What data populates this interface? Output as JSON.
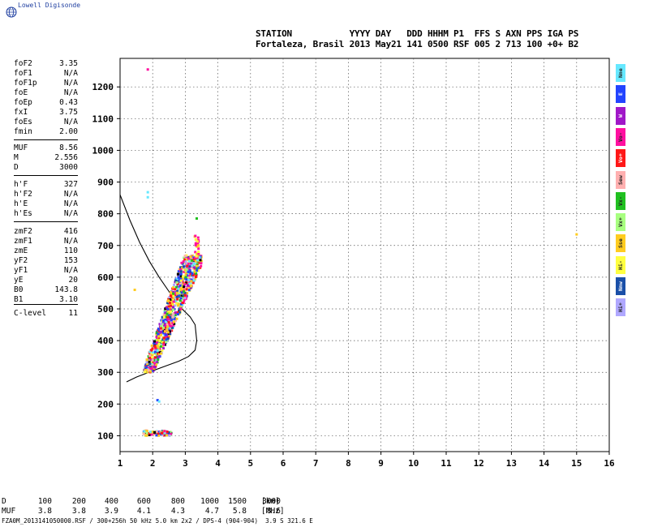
{
  "app": {
    "title": "Lowell Digisonde"
  },
  "header": {
    "labels": "STATION           YYYY DAY   DDD HHHM P1  FFS S AXN PPS IGA PS",
    "values": "Fortaleza, Brasil 2013 May21 141 0500 RSF 005 2 713 100 +0+ B2"
  },
  "params": [
    {
      "name": "foF2",
      "value": "3.35"
    },
    {
      "name": "foF1",
      "value": "N/A"
    },
    {
      "name": "foF1p",
      "value": "N/A"
    },
    {
      "name": "foE",
      "value": "N/A"
    },
    {
      "name": "foEp",
      "value": "0.43"
    },
    {
      "name": "fxI",
      "value": "3.75"
    },
    {
      "name": "foEs",
      "value": "N/A"
    },
    {
      "name": "fmin",
      "value": "2.00"
    },
    {
      "name": "MUF",
      "value": "8.56"
    },
    {
      "name": "M",
      "value": "2.556"
    },
    {
      "name": "D",
      "value": "3000"
    },
    {
      "name": "h'F",
      "value": "327"
    },
    {
      "name": "h'F2",
      "value": "N/A"
    },
    {
      "name": "h'E",
      "value": "N/A"
    },
    {
      "name": "h'Es",
      "value": "N/A"
    },
    {
      "name": "zmF2",
      "value": "416"
    },
    {
      "name": "zmF1",
      "value": "N/A"
    },
    {
      "name": "zmE",
      "value": "110"
    },
    {
      "name": "yF2",
      "value": "153"
    },
    {
      "name": "yF1",
      "value": "N/A"
    },
    {
      "name": "yE",
      "value": "20"
    },
    {
      "name": "B0",
      "value": "143.8"
    },
    {
      "name": "B1",
      "value": "3.10"
    },
    {
      "name": "C-level",
      "value": "11"
    }
  ],
  "legend": [
    {
      "label": "Nne",
      "color": "#66e8ff"
    },
    {
      "label": "E",
      "color": "#2244ff"
    },
    {
      "label": "W",
      "color": "#a018c8"
    },
    {
      "label": "Vo-",
      "color": "#ff10a0"
    },
    {
      "label": "Vo+",
      "color": "#ff1818"
    },
    {
      "label": "Sew",
      "color": "#ffb0b0"
    },
    {
      "label": "Vx-",
      "color": "#20c020"
    },
    {
      "label": "Vx+",
      "color": "#a8ff80"
    },
    {
      "label": "Sse",
      "color": "#ffcc20"
    },
    {
      "label": "Hi-",
      "color": "#ffff40"
    },
    {
      "label": "Nnw",
      "color": "#1a4fa8"
    },
    {
      "label": "Hi+",
      "color": "#b0a8ff"
    }
  ],
  "bottom_table": {
    "rows": [
      {
        "label": "D",
        "values": [
          "100",
          "200",
          "400",
          "600",
          "800",
          "1000",
          "1500",
          "3000"
        ],
        "unit": "[km]"
      },
      {
        "label": "MUF",
        "values": [
          "3.8",
          "3.8",
          "3.9",
          "4.1",
          "4.3",
          "4.7",
          "5.8",
          "8.6"
        ],
        "unit": "[MHz]"
      }
    ]
  },
  "footer": "FZA0M_2013141050000.RSF / 300+256h 50 kHz 5.0 km 2x2 / DPS-4 (904-904)  3.9 S 321.6 E",
  "chart_data": {
    "type": "scatter",
    "x_ticks": [
      "1",
      "2",
      "3",
      "4",
      "5",
      "6",
      "7",
      "8",
      "9",
      "10",
      "11",
      "12",
      "13",
      "14",
      "15",
      "16"
    ],
    "y_ticks": [
      "100",
      "200",
      "300",
      "400",
      "500",
      "600",
      "700",
      "800",
      "900",
      "1000",
      "1100",
      "1200"
    ],
    "xlim": [
      1,
      16
    ],
    "ylim": [
      50,
      1290
    ],
    "grid": true,
    "profile_curve": {
      "x": [
        1.0,
        1.3,
        1.6,
        1.9,
        2.2,
        2.5,
        2.8,
        3.0,
        3.15,
        3.3,
        3.35,
        3.3,
        3.1,
        2.8,
        2.4,
        2.0,
        1.5,
        1.2
      ],
      "y": [
        860,
        780,
        710,
        650,
        600,
        555,
        510,
        490,
        475,
        450,
        400,
        370,
        350,
        335,
        320,
        305,
        285,
        270
      ]
    },
    "echo_clusters": [
      {
        "freq_range": [
          1.8,
          3.5
        ],
        "height_range": [
          295,
          700
        ],
        "description": "F2 trace"
      },
      {
        "freq_range": [
          1.7,
          2.6
        ],
        "height_range": [
          98,
          118
        ],
        "description": "E echoes"
      }
    ],
    "isolated_echoes": [
      {
        "x": 1.85,
        "y": 1255,
        "color": "#ff10a0"
      },
      {
        "x": 1.85,
        "y": 868,
        "color": "#66e8ff"
      },
      {
        "x": 1.85,
        "y": 852,
        "color": "#66e8ff"
      },
      {
        "x": 1.45,
        "y": 560,
        "color": "#ffcc20"
      },
      {
        "x": 2.15,
        "y": 212,
        "color": "#2244ff"
      },
      {
        "x": 2.2,
        "y": 208,
        "color": "#66e8ff"
      },
      {
        "x": 3.35,
        "y": 785,
        "color": "#20c020"
      },
      {
        "x": 15.0,
        "y": 735,
        "color": "#ffcc20"
      }
    ]
  }
}
